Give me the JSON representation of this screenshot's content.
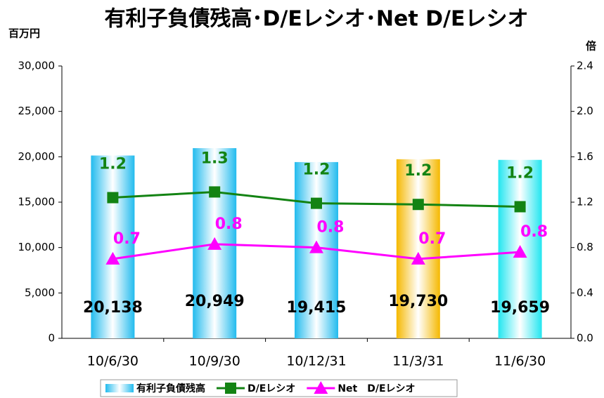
{
  "chart_data": {
    "type": "bar",
    "title": "有利子負債残高･D/Eレシオ･Net D/Eレシオ",
    "y_unit": "百万円",
    "y2_unit": "倍",
    "categories": [
      "10/6/30",
      "10/9/30",
      "10/12/31",
      "11/3/31",
      "11/6/30"
    ],
    "ylim": [
      0,
      30000
    ],
    "yticks": [
      0,
      {
        "value": 5000,
        "label": "5,000"
      },
      {
        "value": 10000,
        "label": "10,000"
      },
      {
        "value": 15000,
        "label": "15,000"
      },
      {
        "value": 20000,
        "label": "20,000"
      },
      {
        "value": 25000,
        "label": "25,000"
      },
      {
        "value": 30000,
        "label": "30,000"
      }
    ],
    "y2lim": [
      0,
      2.4
    ],
    "y2ticks": [
      {
        "value": 0,
        "label": "0.0"
      },
      0.4,
      0.8,
      1.2,
      1.6,
      {
        "value": 2,
        "label": "2.0"
      },
      2.4
    ],
    "series": [
      {
        "name": "有利子負債残高",
        "type": "bar",
        "colors": [
          "#22bbee",
          "#22bbee",
          "#22bbee",
          "#f5b800",
          "#22e6f0"
        ],
        "values": [
          20138,
          20949,
          19415,
          19730,
          19659
        ],
        "value_labels": [
          "20,138",
          "20,949",
          "19,415",
          "19,730",
          "19,659"
        ]
      },
      {
        "name": "D/Eレシオ",
        "type": "line",
        "axis": "y2",
        "color": "#138313",
        "marker": "square",
        "values": [
          1.24,
          1.29,
          1.19,
          1.18,
          1.16
        ],
        "value_labels": [
          "1.2",
          "1.3",
          "1.2",
          "1.2",
          "1.2"
        ]
      },
      {
        "name": "Net　D/Eレシオ",
        "type": "line",
        "axis": "y2",
        "color": "#ff00ff",
        "marker": "triangle",
        "values": [
          0.7,
          0.83,
          0.8,
          0.7,
          0.76
        ],
        "value_labels": [
          "0.7",
          "0.8",
          "0.8",
          "0.7",
          "0.8"
        ]
      }
    ]
  }
}
